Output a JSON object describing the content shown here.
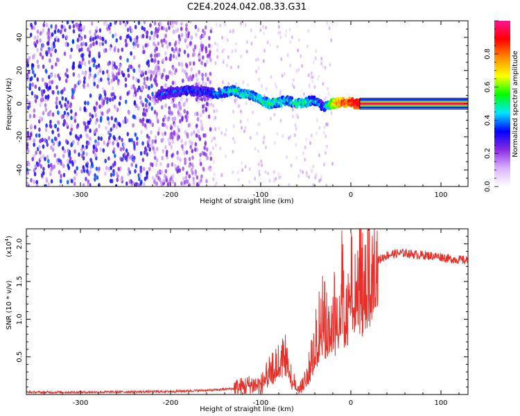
{
  "title": "C2E4.2024.042.08.33.G31",
  "chart_data": [
    {
      "type": "heatmap",
      "xlabel": "Height of straight line (km)",
      "ylabel": "Frequency (Hz)",
      "xlim": [
        -360,
        130
      ],
      "ylim": [
        -50,
        50
      ],
      "xticks": [
        -300,
        -200,
        -100,
        0,
        100
      ],
      "yticks": [
        -40,
        -20,
        0,
        20,
        40
      ],
      "colorbar": {
        "label": "Normalized spectral amplitude",
        "range": [
          0,
          1
        ],
        "ticks": [
          0.0,
          0.2,
          0.4,
          0.6,
          0.8
        ],
        "colors": [
          "#ffffff",
          "#d9b3ff",
          "#8a2be2",
          "#0000ff",
          "#00e5ff",
          "#00ff00",
          "#ffff00",
          "#ff8c00",
          "#ff0000",
          "#ff1493"
        ]
      },
      "noise_region": {
        "x": [
          -360,
          -155
        ],
        "amplitude": 0.3
      },
      "sparse_region": {
        "x": [
          -155,
          -20
        ],
        "amplitude": 0.1
      },
      "ridge": {
        "x": [
          -215,
          -200,
          -180,
          -160,
          -150,
          -140,
          -130,
          -120,
          -110,
          -100,
          -90,
          -80,
          -70,
          -60,
          -50,
          -40,
          -35,
          -30,
          -20,
          -10,
          0,
          5,
          10,
          130
        ],
        "freq": [
          5,
          7,
          8,
          7,
          6,
          7,
          8,
          6,
          5,
          2,
          0,
          1,
          2,
          0,
          1,
          2,
          0,
          -2,
          0,
          1,
          1,
          0,
          0,
          0
        ],
        "amplitude": [
          0.3,
          0.35,
          0.35,
          0.35,
          0.4,
          0.45,
          0.5,
          0.5,
          0.45,
          0.5,
          0.55,
          0.5,
          0.45,
          0.5,
          0.5,
          0.45,
          0.4,
          0.35,
          0.7,
          0.85,
          0.9,
          0.95,
          1.0,
          1.0
        ]
      }
    },
    {
      "type": "line",
      "xlabel": "Height of straight line (km)",
      "ylabel": "SNR (10 * v/v)",
      "yscale_label": "(x10",
      "yscale_exp": "4",
      "yscale_close": ")",
      "xlim": [
        -360,
        130
      ],
      "ylim": [
        0,
        2.2
      ],
      "xticks": [
        -300,
        -200,
        -100,
        0,
        100
      ],
      "yticks": [
        0.5,
        1.0,
        1.5,
        2.0
      ],
      "color": "#e8302a",
      "series": [
        {
          "x": [
            -360,
            -300,
            -200,
            -150,
            -130,
            -120,
            -110,
            -100,
            -95,
            -90,
            -85,
            -80,
            -75,
            -70,
            -65,
            -60,
            -55,
            -50,
            -45,
            -40,
            -35,
            -30,
            -25,
            -20,
            -15,
            -10,
            -5,
            0,
            5,
            10,
            15,
            20,
            25,
            30,
            40,
            50,
            60,
            70,
            80,
            90,
            100,
            110,
            120,
            130
          ],
          "y": [
            0.03,
            0.03,
            0.04,
            0.06,
            0.08,
            0.1,
            0.13,
            0.12,
            0.22,
            0.32,
            0.36,
            0.45,
            0.55,
            0.5,
            0.2,
            0.1,
            0.08,
            0.2,
            0.4,
            0.7,
            1.0,
            1.2,
            0.8,
            1.35,
            1.05,
            1.6,
            1.0,
            1.75,
            1.3,
            1.9,
            1.55,
            1.65,
            1.72,
            1.78,
            1.85,
            1.87,
            1.88,
            1.86,
            1.85,
            1.84,
            1.83,
            1.8,
            1.79,
            1.78
          ]
        }
      ]
    }
  ]
}
